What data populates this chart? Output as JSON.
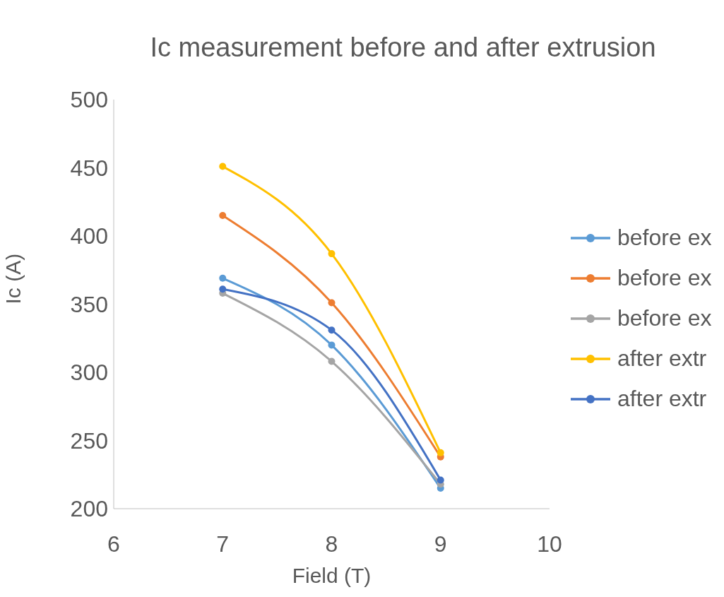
{
  "chart_data": {
    "type": "line",
    "title": "Ic measurement before and after extrusion",
    "xlabel": "Field (T)",
    "ylabel": "Ic (A)",
    "x": [
      7,
      8,
      9
    ],
    "series": [
      {
        "name": "before ex",
        "color": "#5b9bd5",
        "values": [
          369,
          320,
          215
        ]
      },
      {
        "name": "before ex",
        "color": "#ed7d31",
        "values": [
          415,
          351,
          238
        ]
      },
      {
        "name": "before ex",
        "color": "#a5a5a5",
        "values": [
          358,
          308,
          218
        ]
      },
      {
        "name": "after extr",
        "color": "#ffc000",
        "values": [
          451,
          387,
          241
        ]
      },
      {
        "name": "after extr",
        "color": "#4472c4",
        "values": [
          361,
          331,
          221
        ]
      }
    ],
    "xlim": [
      6,
      10
    ],
    "xticks": [
      6,
      7,
      8,
      9,
      10
    ],
    "ylim": [
      200,
      500
    ],
    "yticks": [
      200,
      250,
      300,
      350,
      400,
      450,
      500
    ],
    "grid": false,
    "legend": "right",
    "marker": "circle",
    "line_style": "solid"
  }
}
